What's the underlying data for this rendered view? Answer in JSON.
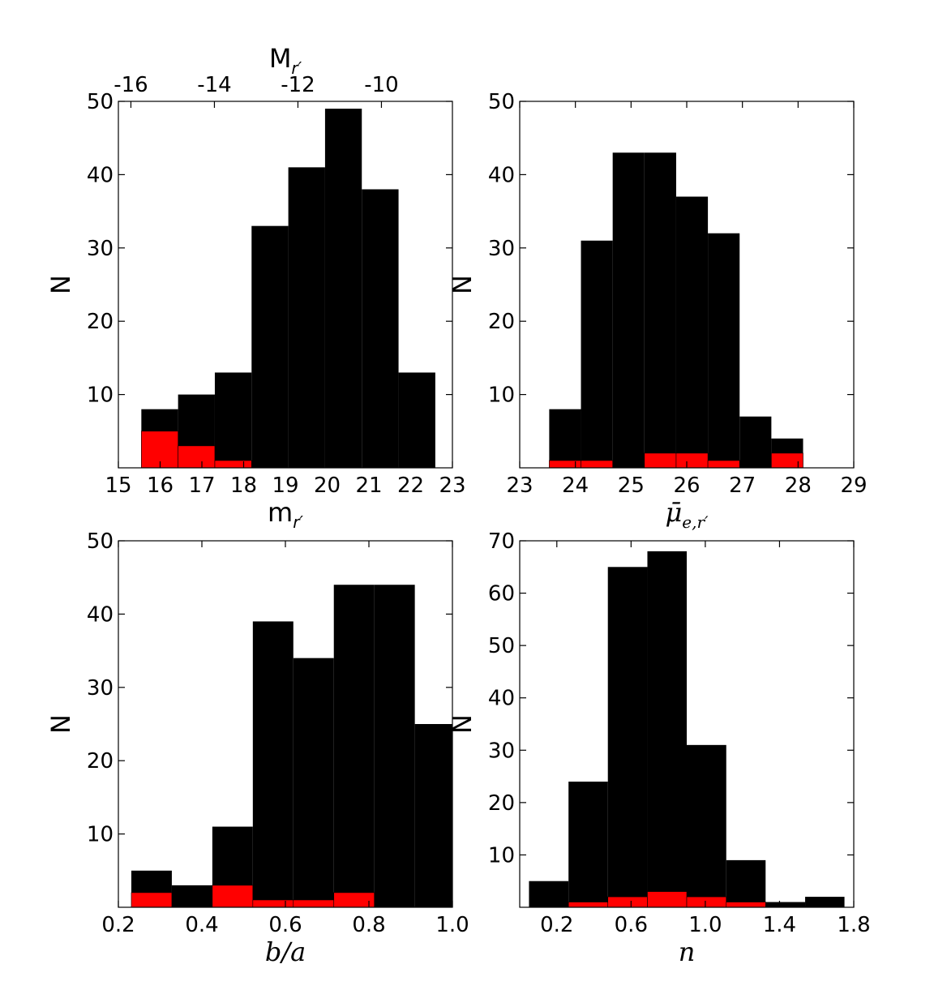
{
  "colors": {
    "background_series": "#000000",
    "highlight_series": "#ff0000"
  },
  "chart_data": [
    {
      "type": "bar",
      "panel": "top-left",
      "xlabel": "m",
      "xlabel_sub": "r′",
      "ylabel": "N",
      "xlim": [
        15,
        23
      ],
      "ylim": [
        0,
        50
      ],
      "xticks": [
        "15",
        "16",
        "17",
        "18",
        "19",
        "20",
        "21",
        "22",
        "23"
      ],
      "yticks": [
        "10",
        "20",
        "30",
        "40",
        "50"
      ],
      "top_axis": {
        "label": "M",
        "label_sub": "r′",
        "ticks": [
          "-16",
          "-14",
          "-12",
          "-10"
        ],
        "tick_positions": [
          15.3,
          17.3,
          19.3,
          21.3
        ]
      },
      "series": [
        {
          "color": "#000000",
          "bin_edges": [
            15.55,
            16.43,
            17.31,
            18.19,
            19.07,
            19.95,
            20.83,
            21.71,
            22.59
          ],
          "values": [
            8,
            10,
            13,
            33,
            41,
            49,
            38,
            13
          ]
        },
        {
          "color": "#ff0000",
          "bin_edges": [
            15.55,
            16.43,
            17.31,
            18.19
          ],
          "values": [
            5,
            3,
            1
          ]
        }
      ]
    },
    {
      "type": "bar",
      "panel": "top-right",
      "xlabel": "μ̄",
      "xlabel_sub": "e,r′",
      "ylabel": "N",
      "xlim": [
        23,
        29
      ],
      "ylim": [
        0,
        50
      ],
      "xticks": [
        "23",
        "24",
        "25",
        "26",
        "27",
        "28",
        "29"
      ],
      "yticks": [
        "10",
        "20",
        "30",
        "40",
        "50"
      ],
      "series": [
        {
          "color": "#000000",
          "bin_edges": [
            23.53,
            24.1,
            24.67,
            25.24,
            25.81,
            26.38,
            26.95,
            27.52,
            28.09
          ],
          "values": [
            8,
            31,
            43,
            43,
            37,
            32,
            7,
            4
          ]
        },
        {
          "color": "#ff0000",
          "bin_edges": [
            23.53,
            24.1,
            24.67,
            25.24,
            25.81,
            26.38,
            26.95,
            27.52,
            28.09
          ],
          "values": [
            1,
            1,
            0,
            2,
            2,
            1,
            0,
            2
          ]
        }
      ]
    },
    {
      "type": "bar",
      "panel": "bottom-left",
      "xlabel": "b/a",
      "ylabel": "N",
      "xlim": [
        0.2,
        1.0
      ],
      "ylim": [
        0,
        50
      ],
      "xticks": [
        "0.2",
        "0.4",
        "0.6",
        "0.8",
        "1.0"
      ],
      "yticks": [
        "10",
        "20",
        "30",
        "40",
        "50"
      ],
      "series": [
        {
          "color": "#000000",
          "bin_edges": [
            0.231,
            0.328,
            0.425,
            0.522,
            0.619,
            0.716,
            0.813,
            0.91,
            1.0
          ],
          "values": [
            5,
            3,
            11,
            39,
            34,
            44,
            44,
            25
          ]
        },
        {
          "color": "#ff0000",
          "bin_edges": [
            0.231,
            0.328,
            0.425,
            0.522,
            0.619,
            0.716,
            0.813
          ],
          "values": [
            2,
            0,
            3,
            1,
            1,
            2
          ]
        }
      ]
    },
    {
      "type": "bar",
      "panel": "bottom-right",
      "xlabel": "n",
      "ylabel": "N",
      "xlim": [
        0.0,
        1.8
      ],
      "ylim": [
        0,
        70
      ],
      "xticks": [
        "0.2",
        "0.6",
        "1.0",
        "1.4",
        "1.8"
      ],
      "yticks": [
        "10",
        "20",
        "30",
        "40",
        "50",
        "60",
        "70"
      ],
      "series": [
        {
          "color": "#000000",
          "bin_edges": [
            0.05,
            0.263,
            0.475,
            0.688,
            0.9,
            1.113,
            1.325,
            1.538,
            1.75
          ],
          "values": [
            5,
            24,
            65,
            68,
            31,
            9,
            1,
            2
          ]
        },
        {
          "color": "#ff0000",
          "bin_edges": [
            0.263,
            0.475,
            0.688,
            0.9,
            1.113,
            1.325
          ],
          "values": [
            1,
            2,
            3,
            2,
            1
          ]
        }
      ]
    }
  ]
}
